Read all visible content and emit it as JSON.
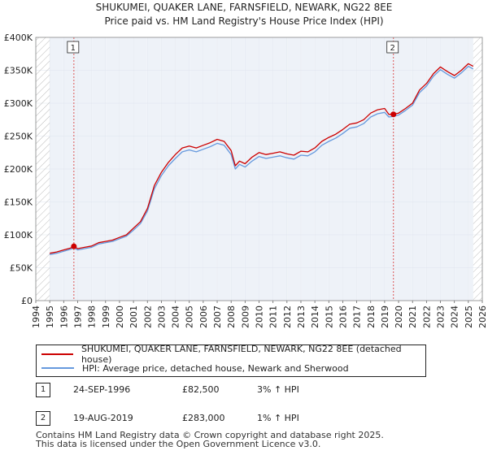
{
  "title_line1": "SHUKUMEI, QUAKER LANE, FARNSFIELD, NEWARK, NG22 8EE",
  "title_line2": "Price paid vs. HM Land Registry's House Price Index (HPI)",
  "chart_data": {
    "type": "line",
    "xlim": [
      1994,
      2026
    ],
    "ylim": [
      0,
      400000
    ],
    "x_ticks": [
      1994,
      1995,
      1996,
      1997,
      1998,
      1999,
      2000,
      2001,
      2002,
      2003,
      2004,
      2005,
      2006,
      2007,
      2008,
      2009,
      2010,
      2011,
      2012,
      2013,
      2014,
      2015,
      2016,
      2017,
      2018,
      2019,
      2020,
      2021,
      2022,
      2023,
      2024,
      2025,
      2026
    ],
    "y_ticks": [
      0,
      50000,
      100000,
      150000,
      200000,
      250000,
      300000,
      350000,
      400000
    ],
    "y_tick_labels": [
      "£0",
      "£50K",
      "£100K",
      "£150K",
      "£200K",
      "£250K",
      "£300K",
      "£350K",
      "£400K"
    ],
    "grid": true,
    "data_start": 1995.0,
    "data_end": 2025.35,
    "series": [
      {
        "name": "SHUKUMEI, QUAKER LANE, FARNSFIELD, NEWARK, NG22 8EE (detached house)",
        "color": "#cc0000",
        "x": [
          1995.0,
          1995.5,
          1996.0,
          1996.5,
          1996.73,
          1997.0,
          1997.5,
          1998.0,
          1998.5,
          1999.0,
          1999.5,
          2000.0,
          2000.5,
          2001.0,
          2001.5,
          2002.0,
          2002.5,
          2003.0,
          2003.5,
          2004.0,
          2004.5,
          2005.0,
          2005.5,
          2006.0,
          2006.5,
          2007.0,
          2007.5,
          2008.0,
          2008.3,
          2008.6,
          2009.0,
          2009.5,
          2010.0,
          2010.5,
          2011.0,
          2011.5,
          2012.0,
          2012.5,
          2013.0,
          2013.5,
          2014.0,
          2014.5,
          2015.0,
          2015.5,
          2016.0,
          2016.5,
          2017.0,
          2017.5,
          2018.0,
          2018.5,
          2019.0,
          2019.3,
          2019.63,
          2020.0,
          2020.5,
          2021.0,
          2021.5,
          2022.0,
          2022.5,
          2023.0,
          2023.5,
          2024.0,
          2024.5,
          2025.0,
          2025.35
        ],
        "y": [
          72000,
          74000,
          77000,
          80000,
          82500,
          79000,
          81000,
          83000,
          88000,
          90000,
          92000,
          96000,
          100000,
          110000,
          120000,
          140000,
          175000,
          195000,
          210000,
          222000,
          232000,
          235000,
          232000,
          236000,
          240000,
          245000,
          242000,
          228000,
          205000,
          212000,
          208000,
          218000,
          225000,
          222000,
          224000,
          226000,
          223000,
          221000,
          227000,
          226000,
          232000,
          242000,
          248000,
          253000,
          260000,
          268000,
          270000,
          275000,
          285000,
          290000,
          292000,
          283000,
          283000,
          285000,
          292000,
          300000,
          320000,
          330000,
          345000,
          355000,
          348000,
          342000,
          350000,
          360000,
          356000
        ]
      },
      {
        "name": "HPI: Average price, detached house, Newark and Sherwood",
        "color": "#6699dd",
        "x": [
          1995.0,
          1995.5,
          1996.0,
          1996.5,
          1996.73,
          1997.0,
          1997.5,
          1998.0,
          1998.5,
          1999.0,
          1999.5,
          2000.0,
          2000.5,
          2001.0,
          2001.5,
          2002.0,
          2002.5,
          2003.0,
          2003.5,
          2004.0,
          2004.5,
          2005.0,
          2005.5,
          2006.0,
          2006.5,
          2007.0,
          2007.5,
          2008.0,
          2008.3,
          2008.6,
          2009.0,
          2009.5,
          2010.0,
          2010.5,
          2011.0,
          2011.5,
          2012.0,
          2012.5,
          2013.0,
          2013.5,
          2014.0,
          2014.5,
          2015.0,
          2015.5,
          2016.0,
          2016.5,
          2017.0,
          2017.5,
          2018.0,
          2018.5,
          2019.0,
          2019.3,
          2019.63,
          2020.0,
          2020.5,
          2021.0,
          2021.5,
          2022.0,
          2022.5,
          2023.0,
          2023.5,
          2024.0,
          2024.5,
          2025.0,
          2025.35
        ],
        "y": [
          70000,
          72000,
          75000,
          78000,
          80000,
          77000,
          79000,
          81000,
          86000,
          88000,
          90000,
          94000,
          98000,
          107000,
          117000,
          136000,
          170000,
          190000,
          205000,
          216000,
          226000,
          229000,
          226000,
          230000,
          234000,
          239000,
          236000,
          222000,
          200000,
          207000,
          203000,
          212000,
          219000,
          216000,
          218000,
          220000,
          217000,
          215000,
          221000,
          220000,
          226000,
          236000,
          242000,
          247000,
          254000,
          262000,
          264000,
          269000,
          279000,
          284000,
          286000,
          279000,
          280000,
          282000,
          289000,
          297000,
          316000,
          326000,
          341000,
          351000,
          344000,
          338000,
          346000,
          356000,
          352000
        ]
      }
    ],
    "sales": [
      {
        "label": "1",
        "year": 1996.73,
        "price": 82500,
        "date": "24-SEP-1996",
        "price_text": "£82,500",
        "hpi_text": "3% ↑ HPI"
      },
      {
        "label": "2",
        "year": 2019.63,
        "price": 283000,
        "date": "19-AUG-2019",
        "price_text": "£283,000",
        "hpi_text": "1% ↑ HPI"
      }
    ]
  },
  "legend": {
    "series1": "SHUKUMEI, QUAKER LANE, FARNSFIELD, NEWARK, NG22 8EE (detached house)",
    "series2": "HPI: Average price, detached house, Newark and Sherwood"
  },
  "sales_table": [
    {
      "label": "1",
      "date": "24-SEP-1996",
      "price": "£82,500",
      "hpi": "3% ↑ HPI"
    },
    {
      "label": "2",
      "date": "19-AUG-2019",
      "price": "£283,000",
      "hpi": "1% ↑ HPI"
    }
  ],
  "footer_line1": "Contains HM Land Registry data © Crown copyright and database right 2025.",
  "footer_line2": "This data is licensed under the Open Government Licence v3.0."
}
